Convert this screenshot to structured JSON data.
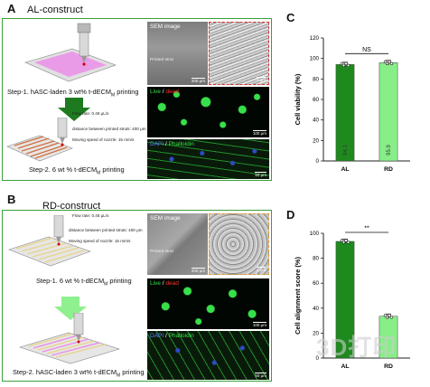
{
  "panel_a": {
    "letter": "A",
    "title": "AL-construct",
    "step1": "Step-1. hASC-laden 3 wt% t-dECM",
    "step1_sub": "M",
    "step1_end": " printing",
    "flow_rate": "Flow rate: 0.48 μL/s",
    "distance": "distance between printed struts: 400 μm",
    "moving_speed": "Moving speed of nozzle: 15 mm/s",
    "step2": "Step-2. 6 wt % t-dECM",
    "step2_sub": "M",
    "step2_end": " printing",
    "sem_label": "SEM image",
    "printed_strut": "Printed strut",
    "scale_sem": "200 μm",
    "scale_zoom": "2 μm",
    "live": "Live",
    "slash": " / ",
    "dead": "dead",
    "scale_live": "100 μm",
    "dapi": "DAPI",
    "phalloidin": "Phalloidin",
    "scale_dapi": "50 μm"
  },
  "panel_b": {
    "letter": "B",
    "title": "RD-construct",
    "flow_rate": "Flow rate: 0.48 μL/s",
    "distance": "distance between printed struts: 400 μm",
    "moving_speed": "Moving speed of nozzle: 15 mm/s",
    "step1": "Step-1. 6 wt % t-dECM",
    "step1_sub": "M",
    "step1_end": " printing",
    "step2": "Step-2. hASC-laden 3 wt% t-dECM",
    "step2_sub": "M",
    "step2_end": " printing",
    "sem_label": "SEM image",
    "printed_strut": "Printed strut",
    "scale_sem": "200 μm",
    "scale_zoom": "2 μm",
    "live": "Live",
    "slash": " / ",
    "dead": "dead",
    "scale_live": "100 μm",
    "dapi": "DAPI",
    "phalloidin": "Phalloidin",
    "scale_dapi": "50 μm"
  },
  "watermark": "3D打印",
  "colors": {
    "frame_green": "#3aa03a",
    "bar_dark": "#1e8a1e",
    "bar_light": "#88ee88",
    "fluor_green": "#37e04a",
    "dapi_blue": "#2b4cc8"
  },
  "chart_data": [
    {
      "panel": "C",
      "type": "bar",
      "categories": [
        "AL",
        "RD"
      ],
      "values": [
        94.1,
        95.9
      ],
      "value_labels": [
        "94.1",
        "95.9"
      ],
      "ylabel": "Cell viability (%)",
      "ylim": [
        0,
        120
      ],
      "yticks": [
        0,
        20,
        40,
        60,
        80,
        100,
        120
      ],
      "significance": "NS",
      "bar_colors": [
        "#1e8a1e",
        "#88ee88"
      ]
    },
    {
      "panel": "D",
      "type": "bar",
      "categories": [
        "AL",
        "RD"
      ],
      "values": [
        93.5,
        33.5
      ],
      "ylabel": "Cell alignment score (%)",
      "ylim": [
        0,
        100
      ],
      "yticks": [
        0,
        20,
        40,
        60,
        80,
        100
      ],
      "significance": "**",
      "bar_colors": [
        "#1e8a1e",
        "#88ee88"
      ]
    }
  ]
}
